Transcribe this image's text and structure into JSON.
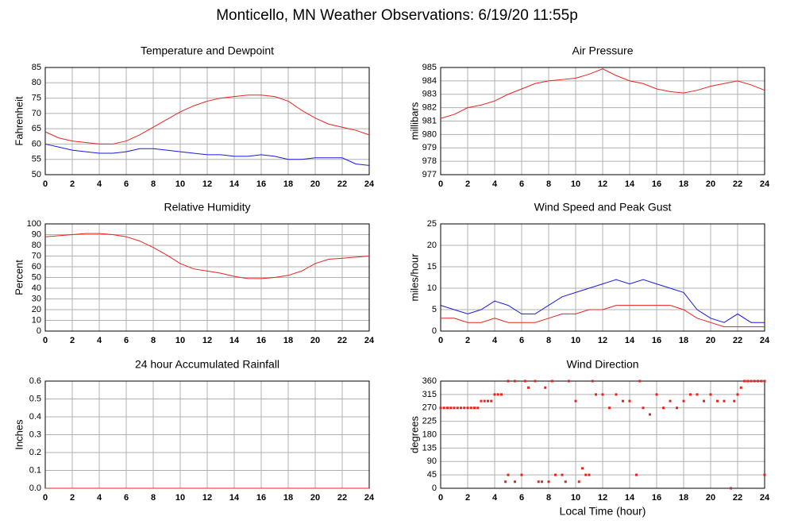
{
  "title": "Monticello, MN Weather Observations: 6/19/20 11:55p",
  "chart_data": [
    {
      "type": "line",
      "title": "Temperature and Dewpoint",
      "ylabel": "Fahrenheit",
      "x": [
        0,
        1,
        2,
        3,
        4,
        5,
        6,
        7,
        8,
        9,
        10,
        11,
        12,
        13,
        14,
        15,
        16,
        17,
        18,
        19,
        20,
        21,
        22,
        23,
        24
      ],
      "series": [
        {
          "color": "#e8231f",
          "values": [
            64,
            62,
            61,
            60.5,
            60,
            60,
            61,
            63,
            65.5,
            68,
            70.5,
            72.5,
            74,
            75,
            75.5,
            76,
            76,
            75.5,
            74,
            71,
            68.5,
            66.5,
            65.5,
            64.5,
            63
          ]
        },
        {
          "color": "#1a1adc",
          "values": [
            60,
            59,
            58,
            57.5,
            57,
            57,
            57.5,
            58.5,
            58.5,
            58,
            57.5,
            57,
            56.5,
            56.5,
            56,
            56,
            56.5,
            56,
            55,
            55,
            55.5,
            55.5,
            55.5,
            53.5,
            53
          ]
        }
      ],
      "xlim": [
        0,
        24
      ],
      "xticks": [
        0,
        2,
        4,
        6,
        8,
        10,
        12,
        14,
        16,
        18,
        20,
        22,
        24
      ],
      "ylim": [
        50,
        85
      ],
      "yticks": [
        50,
        55,
        60,
        65,
        70,
        75,
        80,
        85
      ],
      "grid": true
    },
    {
      "type": "line",
      "title": "Air Pressure",
      "ylabel": "millibars",
      "x": [
        0,
        1,
        2,
        3,
        4,
        5,
        6,
        7,
        8,
        9,
        10,
        11,
        12,
        13,
        14,
        15,
        16,
        17,
        18,
        19,
        20,
        21,
        22,
        23,
        24
      ],
      "series": [
        {
          "color": "#e8231f",
          "values": [
            981.2,
            981.5,
            982,
            982.2,
            982.5,
            983,
            983.4,
            983.8,
            984,
            984.1,
            984.2,
            984.5,
            984.9,
            984.4,
            984,
            983.8,
            983.4,
            983.2,
            983.1,
            983.3,
            983.6,
            983.8,
            984,
            983.7,
            983.3
          ]
        }
      ],
      "xlim": [
        0,
        24
      ],
      "xticks": [
        0,
        2,
        4,
        6,
        8,
        10,
        12,
        14,
        16,
        18,
        20,
        22,
        24
      ],
      "ylim": [
        977,
        985
      ],
      "yticks": [
        977,
        978,
        979,
        980,
        981,
        982,
        983,
        984,
        985
      ],
      "grid": true
    },
    {
      "type": "line",
      "title": "Relative Humidity",
      "ylabel": "Percent",
      "x": [
        0,
        1,
        2,
        3,
        4,
        5,
        6,
        7,
        8,
        9,
        10,
        11,
        12,
        13,
        14,
        15,
        16,
        17,
        18,
        19,
        20,
        21,
        22,
        23,
        24
      ],
      "series": [
        {
          "color": "#e8231f",
          "values": [
            88,
            89,
            90,
            91,
            91,
            90,
            88,
            84,
            78,
            71,
            63,
            58,
            56,
            54,
            51,
            49,
            49,
            50,
            52,
            56,
            63,
            67,
            68,
            69,
            70
          ]
        }
      ],
      "xlim": [
        0,
        24
      ],
      "xticks": [
        0,
        2,
        4,
        6,
        8,
        10,
        12,
        14,
        16,
        18,
        20,
        22,
        24
      ],
      "ylim": [
        0,
        100
      ],
      "yticks": [
        0,
        10,
        20,
        30,
        40,
        50,
        60,
        70,
        80,
        90,
        100
      ],
      "grid": true
    },
    {
      "type": "line",
      "title": "Wind Speed and Peak Gust",
      "ylabel": "miles/hour",
      "x": [
        0,
        1,
        2,
        3,
        4,
        5,
        6,
        7,
        8,
        9,
        10,
        11,
        12,
        13,
        14,
        15,
        16,
        17,
        18,
        19,
        20,
        21,
        22,
        23,
        24
      ],
      "series": [
        {
          "color": "#e8231f",
          "values": [
            3,
            3,
            2,
            2,
            3,
            2,
            2,
            2,
            3,
            4,
            4,
            5,
            5,
            6,
            6,
            6,
            6,
            6,
            5,
            3,
            2,
            1,
            1,
            1,
            1
          ]
        },
        {
          "color": "#1a1adc",
          "values": [
            6,
            5,
            4,
            5,
            7,
            6,
            4,
            4,
            6,
            8,
            9,
            10,
            11,
            12,
            11,
            12,
            11,
            10,
            9,
            5,
            3,
            2,
            4,
            2,
            2
          ]
        }
      ],
      "xlim": [
        0,
        24
      ],
      "xticks": [
        0,
        2,
        4,
        6,
        8,
        10,
        12,
        14,
        16,
        18,
        20,
        22,
        24
      ],
      "ylim": [
        0,
        25
      ],
      "yticks": [
        0,
        5,
        10,
        15,
        20,
        25
      ],
      "grid": true
    },
    {
      "type": "line",
      "title": "24 hour Accumulated Rainfall",
      "ylabel": "Inches",
      "x": [
        0,
        24
      ],
      "series": [
        {
          "color": "#e8231f",
          "values": [
            0,
            0
          ]
        }
      ],
      "xlim": [
        0,
        24
      ],
      "xticks": [
        0,
        2,
        4,
        6,
        8,
        10,
        12,
        14,
        16,
        18,
        20,
        22,
        24
      ],
      "ylim": [
        0,
        0.6
      ],
      "yticks": [
        {
          "value": 0,
          "label": "0.0"
        },
        0.1,
        0.2,
        0.3,
        0.4,
        0.5,
        0.6
      ],
      "grid": true
    },
    {
      "type": "scatter",
      "title": "Wind Direction",
      "ylabel": "degrees",
      "xlabel": "Local Time (hour)",
      "color": "#e8231f",
      "x": [
        0,
        0.25,
        0.5,
        0.75,
        1,
        1.25,
        1.5,
        1.75,
        2,
        2.25,
        2.5,
        2.75,
        3,
        3.25,
        3.5,
        3.75,
        4,
        4.25,
        4.5,
        4.8,
        5,
        5,
        5.5,
        5.5,
        6,
        6.25,
        6.5,
        7,
        7.25,
        7.5,
        7.75,
        8,
        8.25,
        8.5,
        9,
        9.25,
        9.5,
        10,
        10.25,
        10.5,
        10.75,
        11,
        11.25,
        11.5,
        12,
        12.5,
        13,
        13.5,
        14,
        14.5,
        14.75,
        15,
        15.5,
        16,
        16.5,
        17,
        17.5,
        18,
        18.5,
        19,
        19.5,
        20,
        20.5,
        21,
        21.5,
        21.75,
        22,
        22.25,
        22.5,
        22.75,
        23,
        23.25,
        23.5,
        23.75,
        24,
        24
      ],
      "values": [
        270,
        270,
        270,
        270,
        270,
        270,
        270,
        270,
        270,
        270,
        270,
        270,
        293,
        293,
        293,
        293,
        315,
        315,
        315,
        22,
        45,
        360,
        360,
        22,
        45,
        360,
        338,
        360,
        22,
        22,
        338,
        22,
        360,
        45,
        45,
        22,
        360,
        293,
        22,
        67,
        45,
        45,
        360,
        315,
        315,
        270,
        315,
        293,
        293,
        45,
        360,
        270,
        248,
        315,
        270,
        293,
        270,
        293,
        315,
        315,
        293,
        315,
        293,
        293,
        0,
        293,
        315,
        338,
        360,
        360,
        360,
        360,
        360,
        360,
        360,
        45
      ],
      "xlim": [
        0,
        24
      ],
      "xticks": [
        0,
        2,
        4,
        6,
        8,
        10,
        12,
        14,
        16,
        18,
        20,
        22,
        24
      ],
      "ylim": [
        0,
        360
      ],
      "yticks": [
        0,
        45,
        90,
        135,
        180,
        225,
        270,
        315,
        360
      ],
      "grid": true
    }
  ]
}
